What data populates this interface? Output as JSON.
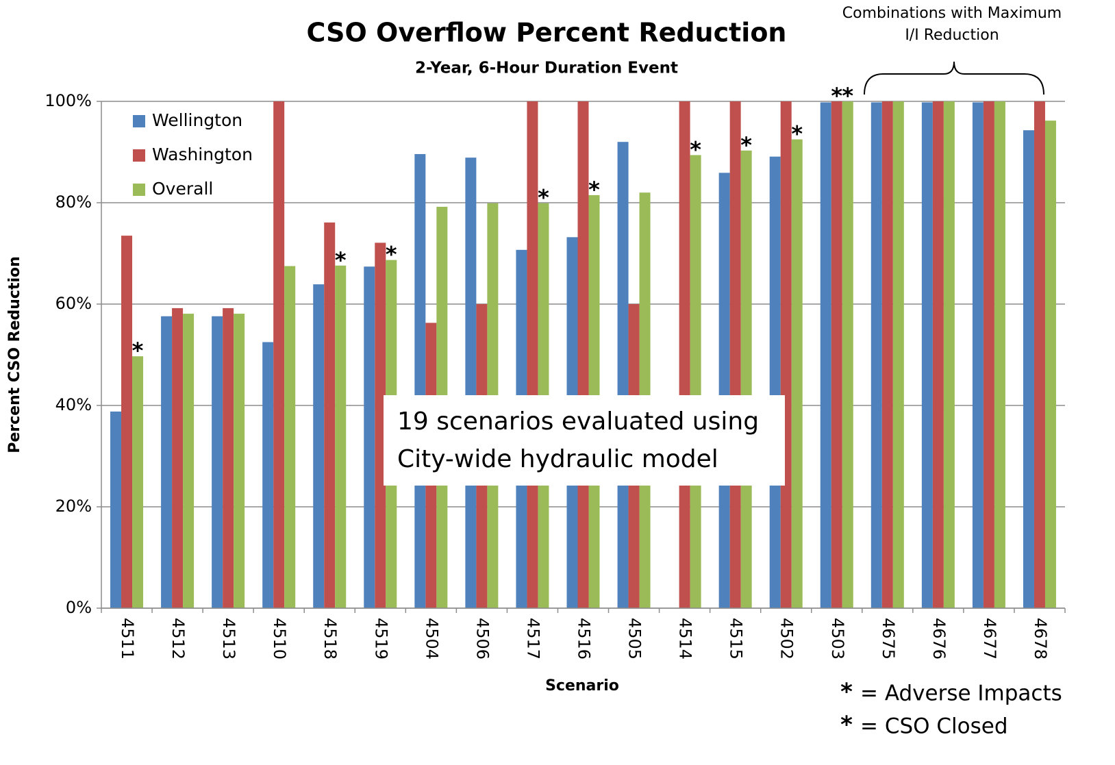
{
  "chart_data": {
    "type": "bar",
    "title": "CSO Overflow Percent Reduction",
    "subtitle": "2-Year, 6-Hour Duration Event",
    "x_label": "Scenario",
    "y_label": "Percent CSO Reduction",
    "categories": [
      "4511",
      "4512",
      "4513",
      "4510",
      "4518",
      "4519",
      "4504",
      "4506",
      "4517",
      "4516",
      "4505",
      "4514",
      "4515",
      "4502",
      "4503",
      "4675",
      "4676",
      "4677",
      "4678"
    ],
    "series": [
      {
        "name": "Wellington",
        "color": "#4f81bd",
        "values": [
          38.8,
          57.6,
          57.6,
          52.5,
          63.9,
          67.4,
          89.6,
          88.9,
          70.7,
          73.2,
          92,
          0,
          85.9,
          89.1,
          99.8,
          99.8,
          99.8,
          99.8,
          94.3
        ]
      },
      {
        "name": "Washington",
        "color": "#c0504d",
        "values": [
          73.5,
          59.2,
          59.2,
          100,
          76.1,
          72.1,
          56.3,
          60,
          100,
          100,
          60,
          100,
          100,
          100,
          100,
          100,
          100,
          100,
          100
        ]
      },
      {
        "name": "Overall",
        "color": "#9bbb59",
        "values": [
          49.7,
          58.1,
          58.1,
          67.5,
          67.6,
          68.7,
          79.2,
          79.9,
          79.9,
          81.5,
          82,
          89.4,
          90.3,
          92.5,
          100,
          100,
          100,
          100,
          96.2
        ]
      }
    ],
    "ylim": [
      0,
      100
    ],
    "yticks": [
      {
        "value": 0,
        "label": "0%"
      },
      {
        "value": 20,
        "label": "20%"
      },
      {
        "value": 40,
        "label": "40%"
      },
      {
        "value": 60,
        "label": "60%"
      },
      {
        "value": 80,
        "label": "80%"
      },
      {
        "value": 100,
        "label": "100%"
      }
    ],
    "grid": true,
    "legend": "upper left",
    "notes": [
      {
        "symbol": "*",
        "label": "= Adverse Impacts",
        "color": "#ff0000",
        "points": [
          [
            2,
            0
          ],
          [
            2,
            4
          ],
          [
            2,
            5
          ],
          [
            2,
            8
          ],
          [
            2,
            9
          ],
          [
            2,
            11
          ],
          [
            2,
            12
          ],
          [
            2,
            13
          ],
          [
            1,
            14
          ]
        ]
      },
      {
        "symbol": "*",
        "label": "= CSO Closed",
        "color": "#00b0f0",
        "points": [
          [
            2,
            14
          ]
        ]
      }
    ],
    "textbox": [
      "19 scenarios evaluated using",
      "City-wide hydraulic model"
    ],
    "bracket_label": [
      "Combinations with Maximum",
      "I/I Reduction"
    ]
  }
}
